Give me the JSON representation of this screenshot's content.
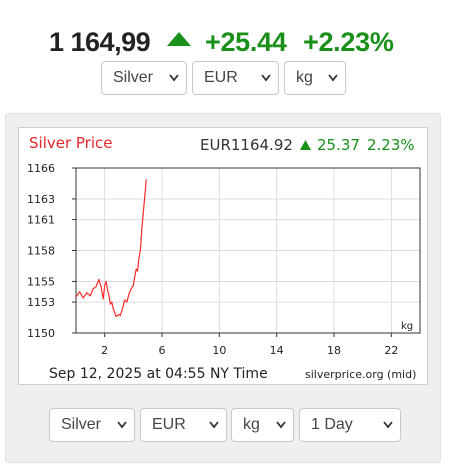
{
  "header": {
    "price": "1 164,99",
    "change": "+25.44",
    "change_pct": "+2.23%",
    "trend_icon": "triangle-up-icon",
    "up_color": "#1a8f1a"
  },
  "top_selectors": {
    "metal": "Silver",
    "currency": "EUR",
    "unit": "kg"
  },
  "chart_header": {
    "title": "Silver Price",
    "price": "EUR1164.92",
    "change": "25.37",
    "change_pct": "2.23%",
    "title_color": "#e8262b"
  },
  "chart_footer": {
    "timestamp": "Sep 12, 2025 at 04:55 NY Time",
    "source": "silverprice.org (mid)"
  },
  "bottom_selectors": {
    "metal": "Silver",
    "currency": "EUR",
    "unit": "kg",
    "period": "1 Day"
  },
  "chart_data": {
    "type": "line",
    "title": "Silver Price",
    "xlabel": "",
    "ylabel": "",
    "unit_label": "kg",
    "xlim": [
      0,
      24
    ],
    "ylim": [
      1150,
      1166
    ],
    "x_ticks": [
      2,
      6,
      10,
      14,
      18,
      22
    ],
    "y_ticks": [
      1150,
      1153,
      1155,
      1158,
      1161,
      1163,
      1166
    ],
    "grid": true,
    "line_color": "#ff2a2a",
    "series": [
      {
        "x": [
          0.0,
          0.25,
          0.5,
          0.75,
          1.0,
          1.2,
          1.4,
          1.6,
          1.75,
          1.9,
          2.0,
          2.1,
          2.2,
          2.3,
          2.4,
          2.5,
          2.6,
          2.7,
          2.8,
          2.9,
          3.0,
          3.1,
          3.25,
          3.4,
          3.55,
          3.7,
          3.85,
          4.0,
          4.1,
          4.2,
          4.3,
          4.35,
          4.4,
          4.45,
          4.5,
          4.55,
          4.6,
          4.65,
          4.7,
          4.75,
          4.8,
          4.85,
          4.9
        ],
        "y": [
          1153.5,
          1154.0,
          1153.4,
          1153.9,
          1153.6,
          1154.3,
          1154.5,
          1155.2,
          1154.5,
          1153.3,
          1154.6,
          1155.0,
          1154.2,
          1153.6,
          1152.8,
          1153.0,
          1152.3,
          1152.0,
          1151.6,
          1151.7,
          1151.8,
          1151.7,
          1152.4,
          1153.2,
          1153.0,
          1153.8,
          1154.3,
          1154.6,
          1155.5,
          1156.2,
          1156.0,
          1156.8,
          1157.3,
          1157.7,
          1158.2,
          1159.2,
          1160.2,
          1161.0,
          1161.8,
          1162.5,
          1163.3,
          1164.0,
          1164.9
        ]
      }
    ]
  }
}
